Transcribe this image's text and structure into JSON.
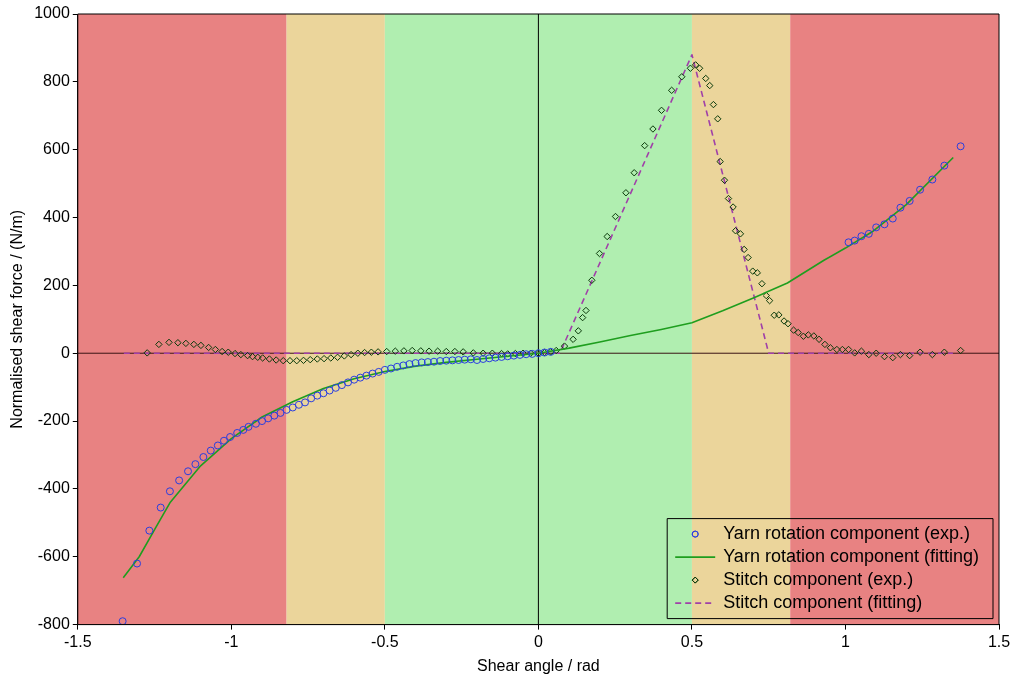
{
  "chart_data": {
    "type": "scatter",
    "xlabel": "Shear angle / rad",
    "ylabel": "Normalised shear force / (N/m)",
    "xlim": [
      -1.5,
      1.5
    ],
    "ylim": [
      -800,
      1000
    ],
    "xticks": [
      -1.5,
      -1,
      -0.5,
      0,
      0.5,
      1,
      1.5
    ],
    "yticks": [
      -800,
      -600,
      -400,
      -200,
      0,
      200,
      400,
      600,
      800,
      1000
    ],
    "grid": false,
    "legend": "bottom right",
    "bands": [
      {
        "axis": "x",
        "from": -1.5,
        "to": -0.82,
        "color": "#e88282"
      },
      {
        "axis": "x",
        "from": -0.82,
        "to": -0.5,
        "color": "#ebd59b"
      },
      {
        "axis": "x",
        "from": -0.5,
        "to": 0.5,
        "color": "#b0eeb0"
      },
      {
        "axis": "x",
        "from": 0.5,
        "to": 0.82,
        "color": "#ebd59b"
      },
      {
        "axis": "x",
        "from": 0.82,
        "to": 1.5,
        "color": "#e88282"
      }
    ],
    "ref_lines": [
      {
        "axis": "x",
        "value": 0,
        "color": "#000000"
      },
      {
        "axis": "y",
        "value": 0,
        "color": "#3a1414"
      }
    ],
    "series": [
      {
        "name": "Yarn rotation component (exp.)",
        "type": "scatter",
        "marker": "circle",
        "color": "#2a3ee0",
        "x": [
          -1.354,
          -1.307,
          -1.267,
          -1.23,
          -1.2,
          -1.17,
          -1.141,
          -1.117,
          -1.091,
          -1.067,
          -1.044,
          -1.024,
          -1.004,
          -0.981,
          -0.961,
          -0.944,
          -0.92,
          -0.9,
          -0.88,
          -0.86,
          -0.84,
          -0.82,
          -0.8,
          -0.78,
          -0.76,
          -0.74,
          -0.72,
          -0.7,
          -0.68,
          -0.66,
          -0.64,
          -0.62,
          -0.6,
          -0.58,
          -0.56,
          -0.54,
          -0.52,
          -0.5,
          -0.48,
          -0.46,
          -0.44,
          -0.42,
          -0.4,
          -0.38,
          -0.36,
          -0.34,
          -0.32,
          -0.3,
          -0.28,
          -0.26,
          -0.24,
          -0.22,
          -0.2,
          -0.18,
          -0.16,
          -0.14,
          -0.12,
          -0.1,
          -0.08,
          -0.06,
          -0.04,
          -0.02,
          0,
          0.02,
          0.04,
          1.01,
          1.03,
          1.052,
          1.076,
          1.1,
          1.127,
          1.154,
          1.179,
          1.209,
          1.243,
          1.283,
          1.322,
          1.375
        ],
        "values": [
          -790,
          -620,
          -523,
          -455,
          -407,
          -375,
          -348,
          -327,
          -306,
          -287,
          -272,
          -258,
          -247,
          -235,
          -226,
          -217,
          -208,
          -200,
          -192,
          -184,
          -176,
          -167,
          -160,
          -152,
          -145,
          -133,
          -125,
          -118,
          -110,
          -102,
          -94,
          -86,
          -78,
          -72,
          -66,
          -60,
          -55,
          -49,
          -45,
          -40,
          -36,
          -32,
          -29,
          -27,
          -26,
          -25,
          -23,
          -22,
          -21,
          -20,
          -19,
          -18,
          -20,
          -17,
          -15,
          -13,
          -11,
          -9,
          -7,
          -5,
          -3,
          -2,
          0,
          2,
          4,
          327,
          332,
          345,
          352,
          371,
          380,
          397,
          429,
          449,
          482,
          512,
          553,
          610
        ]
      },
      {
        "name": "Yarn rotation component (fitting)",
        "type": "line",
        "marker": "none",
        "line_style": "solid",
        "color": "#1e9e1e",
        "x": [
          -1.352,
          -1.3,
          -1.25,
          -1.2,
          -1.1,
          -1.0,
          -0.9,
          -0.8,
          -0.7,
          -0.6,
          -0.5,
          -0.4,
          -0.3,
          -0.2,
          -0.1,
          0,
          0.1,
          0.2,
          0.3,
          0.4,
          0.5,
          0.6,
          0.7,
          0.811,
          0.93,
          1.0,
          1.087,
          1.198,
          1.351
        ],
        "values": [
          -662,
          -600,
          -520,
          -441,
          -332,
          -252,
          -188,
          -143,
          -104,
          -75,
          -54,
          -38,
          -27,
          -18,
          -9,
          0,
          15,
          33,
          52,
          70,
          90,
          125,
          163,
          207,
          274,
          310,
          358,
          438,
          577
        ]
      },
      {
        "name": "Stitch component (exp.)",
        "type": "scatter",
        "marker": "diamond",
        "color": "#0a3a0a",
        "x": [
          -1.274,
          -1.236,
          -1.203,
          -1.174,
          -1.148,
          -1.122,
          -1.099,
          -1.074,
          -1.052,
          -1.03,
          -1.01,
          -0.988,
          -0.969,
          -0.947,
          -0.931,
          -0.914,
          -0.898,
          -0.876,
          -0.854,
          -0.831,
          -0.809,
          -0.787,
          -0.765,
          -0.743,
          -0.72,
          -0.698,
          -0.676,
          -0.654,
          -0.632,
          -0.61,
          -0.588,
          -0.566,
          -0.544,
          -0.522,
          -0.494,
          -0.466,
          -0.438,
          -0.411,
          -0.383,
          -0.356,
          -0.328,
          -0.3,
          -0.272,
          -0.245,
          -0.212,
          -0.18,
          -0.15,
          -0.12,
          -0.1,
          -0.075,
          -0.05,
          -0.025,
          0,
          0.02,
          0.04,
          0.058,
          0.085,
          0.113,
          0.13,
          0.144,
          0.155,
          0.174,
          0.199,
          0.224,
          0.251,
          0.285,
          0.312,
          0.346,
          0.373,
          0.401,
          0.434,
          0.467,
          0.495,
          0.512,
          0.525,
          0.545,
          0.558,
          0.57,
          0.584,
          0.592,
          0.606,
          0.619,
          0.634,
          0.642,
          0.658,
          0.67,
          0.683,
          0.698,
          0.713,
          0.728,
          0.742,
          0.753,
          0.768,
          0.783,
          0.8,
          0.813,
          0.831,
          0.846,
          0.863,
          0.879,
          0.897,
          0.914,
          0.933,
          0.951,
          0.972,
          0.99,
          1.01,
          1.03,
          1.052,
          1.076,
          1.1,
          1.127,
          1.154,
          1.179,
          1.209,
          1.243,
          1.283,
          1.322,
          1.375
        ],
        "values": [
          1,
          26,
          32,
          31,
          29,
          26,
          23,
          17,
          11,
          5,
          3,
          -1,
          -4,
          -7,
          -10,
          -12,
          -14,
          -17,
          -20,
          -22,
          -22,
          -22,
          -21,
          -19,
          -17,
          -16,
          -14,
          -12,
          -8,
          -4,
          0,
          2,
          3,
          4,
          5,
          6,
          7,
          8,
          7,
          6,
          6,
          5,
          5,
          4,
          1,
          0,
          0,
          -1,
          -2,
          -1,
          0,
          0,
          0,
          2,
          4,
          8,
          21,
          41,
          66,
          105,
          126,
          215,
          294,
          344,
          403,
          473,
          532,
          612,
          661,
          716,
          775,
          815,
          840,
          850,
          840,
          810,
          789,
          733,
          691,
          565,
          510,
          456,
          431,
          361,
          352,
          306,
          282,
          242,
          237,
          205,
          170,
          155,
          112,
          113,
          95,
          87,
          68,
          61,
          50,
          54,
          51,
          41,
          26,
          16,
          11,
          11,
          11,
          1,
          6,
          -4,
          0,
          -10,
          -13,
          -4,
          -7,
          3,
          -4,
          3,
          8
        ]
      },
      {
        "name": "Stitch component (fitting)",
        "type": "line",
        "marker": "none",
        "line_style": "dashed",
        "color": "#a040a8",
        "x": [
          -1.35,
          0.07,
          0.5,
          0.75,
          1.35
        ],
        "values": [
          0,
          0,
          880,
          0,
          0
        ]
      }
    ]
  }
}
